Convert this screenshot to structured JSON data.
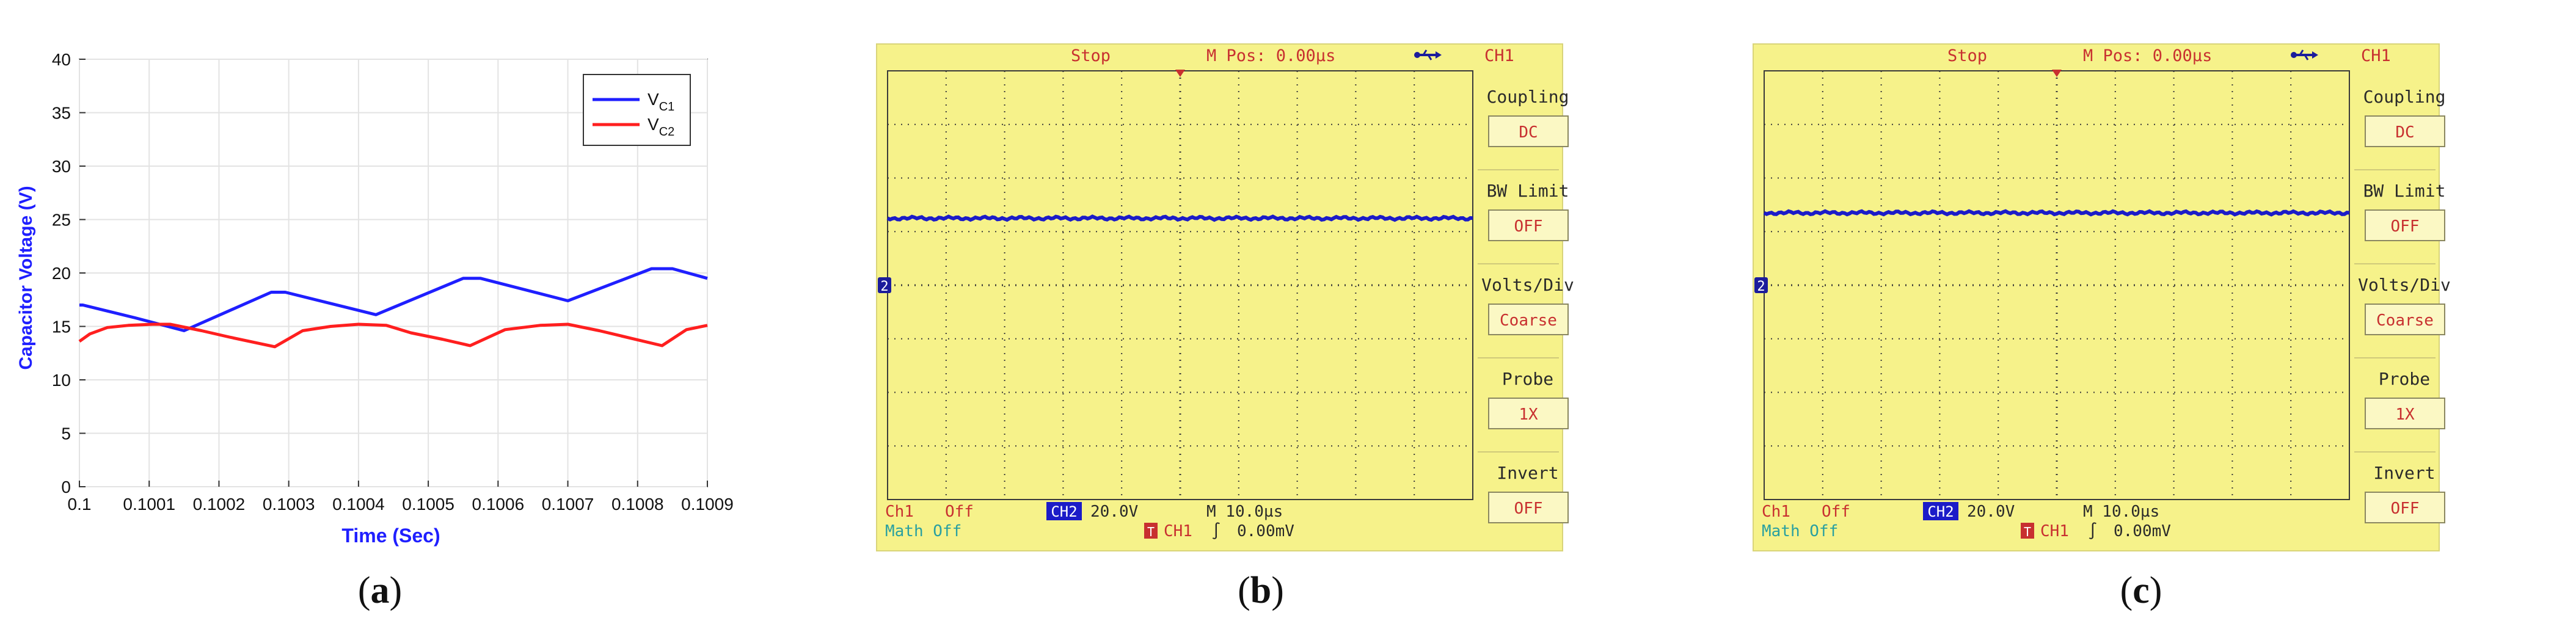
{
  "panel_labels": [
    "(a)",
    "(b)",
    "(c)"
  ],
  "chart_data": {
    "type": "line",
    "title": "",
    "xlabel": "Time (Sec)",
    "ylabel": "Capacitor Voltage (V)",
    "xlim": [
      0.1,
      0.1009
    ],
    "ylim": [
      0,
      40
    ],
    "x_ticks": [
      "0.1",
      "0.1001",
      "0.1002",
      "0.1003",
      "0.1004",
      "0.1005",
      "0.1006",
      "0.1007",
      "0.1008",
      "0.1009"
    ],
    "y_ticks": [
      "0",
      "5",
      "10",
      "15",
      "20",
      "25",
      "30",
      "35",
      "40"
    ],
    "grid": true,
    "legend_position": "top-right",
    "series": [
      {
        "name": "V",
        "name_sub": "C1",
        "color": "#1f1fff",
        "x": [
          0.1,
          0.100005,
          0.10008,
          0.10015,
          0.100275,
          0.100295,
          0.100425,
          0.10055,
          0.100575,
          0.1007,
          0.10082,
          0.10085,
          0.1009
        ],
        "y": [
          17.0,
          17.0,
          15.8,
          14.6,
          18.2,
          18.2,
          16.1,
          19.5,
          19.5,
          17.4,
          20.4,
          20.4,
          19.5
        ]
      },
      {
        "name": "V",
        "name_sub": "C2",
        "color": "#ff1f1f",
        "x": [
          0.1,
          0.100015,
          0.10004,
          0.10007,
          0.100105,
          0.10013,
          0.100175,
          0.100215,
          0.10028,
          0.10032,
          0.10036,
          0.1004,
          0.10044,
          0.100475,
          0.10052,
          0.10056,
          0.10061,
          0.10066,
          0.1007,
          0.100745,
          0.10079,
          0.100835,
          0.10087,
          0.1009
        ],
        "y": [
          13.6,
          14.3,
          14.9,
          15.1,
          15.2,
          15.2,
          14.6,
          14.0,
          13.1,
          14.6,
          15.0,
          15.2,
          15.1,
          14.4,
          13.8,
          13.2,
          14.7,
          15.1,
          15.2,
          14.6,
          13.9,
          13.2,
          14.7,
          15.1
        ]
      }
    ]
  },
  "scopes": [
    {
      "id": "b",
      "top_status": "Stop",
      "top_pos": "M Pos: 0.00µs",
      "channel_header": "CH1",
      "ground_marker": "2",
      "trace_level_div": 1.25,
      "menu": [
        {
          "label": "Coupling",
          "value": "DC"
        },
        {
          "label": "BW  Limit",
          "value": "OFF"
        },
        {
          "label": "Volts/Div",
          "value": "Coarse"
        },
        {
          "label": "Probe",
          "value": "1X"
        },
        {
          "label": "Invert",
          "value": "OFF"
        }
      ],
      "bottom": {
        "ch1": "Ch1",
        "ch1_state": "Off",
        "ch2": "CH2",
        "ch2_value": "20.0V",
        "timebase": "M 10.0µs",
        "math": "Math  Off",
        "trig_badge": "T",
        "trig_ch": "CH1",
        "trig_slope": "∫",
        "trig_level": "0.00mV"
      }
    },
    {
      "id": "c",
      "top_status": "Stop",
      "top_pos": "M Pos: 0.00µs",
      "channel_header": "CH1",
      "ground_marker": "2",
      "trace_level_div": 1.35,
      "menu": [
        {
          "label": "Coupling",
          "value": "DC"
        },
        {
          "label": "BW  Limit",
          "value": "OFF"
        },
        {
          "label": "Volts/Div",
          "value": "Coarse"
        },
        {
          "label": "Probe",
          "value": "1X"
        },
        {
          "label": "Invert",
          "value": "OFF"
        }
      ],
      "bottom": {
        "ch1": "Ch1",
        "ch1_state": "Off",
        "ch2": "CH2",
        "ch2_value": "20.0V",
        "timebase": "M 10.0µs",
        "math": "Math  Off",
        "trig_badge": "T",
        "trig_ch": "CH1",
        "trig_slope": "∫",
        "trig_level": "0.00mV"
      }
    }
  ],
  "colors": {
    "scope_bg": "#f6f28a",
    "scope_grid": "#3a3a3a",
    "scope_trace": "#1c1cc8",
    "scope_text": "#c83030",
    "scope_menu_label": "#2a2a2a",
    "scope_channel_badge": "#1c1cc8",
    "math_text": "#2aa0a0"
  }
}
